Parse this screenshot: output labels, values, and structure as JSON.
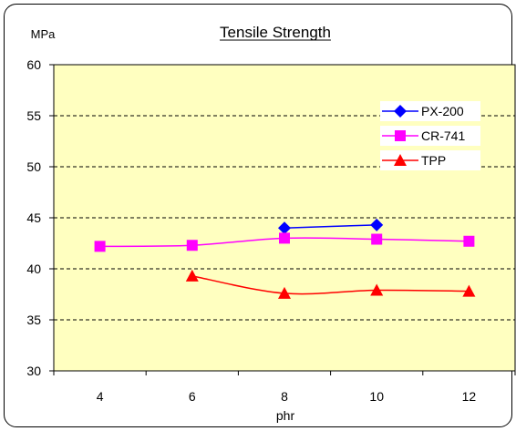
{
  "chart_data": {
    "type": "line",
    "title": "Tensile Strength",
    "ylabel": "MPa",
    "xlabel": "phr",
    "x": [
      4,
      6,
      8,
      10,
      12
    ],
    "xlim": [
      3,
      13
    ],
    "ylim": [
      30,
      60
    ],
    "yticks": [
      30,
      35,
      40,
      45,
      50,
      55,
      60
    ],
    "grid": "horizontal dashed",
    "legend_position": "right",
    "plot_background": "#ffffc0",
    "series": [
      {
        "name": "PX-200",
        "color": "#0000ff",
        "marker": "diamond",
        "points": [
          [
            8,
            44.0
          ],
          [
            10,
            44.3
          ]
        ]
      },
      {
        "name": "CR-741",
        "color": "#ff00ff",
        "marker": "square",
        "points": [
          [
            4,
            42.2
          ],
          [
            6,
            42.3
          ],
          [
            8,
            43.0
          ],
          [
            10,
            42.9
          ],
          [
            12,
            42.7
          ]
        ]
      },
      {
        "name": "TPP",
        "color": "#ff0000",
        "marker": "triangle",
        "points": [
          [
            6,
            39.3
          ],
          [
            8,
            37.6
          ],
          [
            10,
            37.9
          ],
          [
            12,
            37.8
          ]
        ]
      }
    ]
  }
}
